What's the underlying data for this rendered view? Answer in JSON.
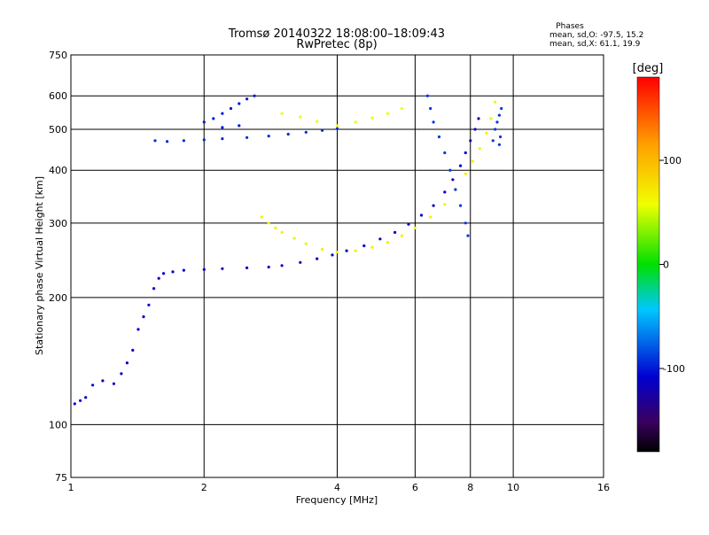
{
  "chart_data": {
    "type": "scatter",
    "title": "Tromsø 20140322 18:08:00–18:09:43",
    "subtitle": "RwPretec (8p)",
    "stats": {
      "heading": "Phases",
      "line1": "mean, sd,O: -97.5, 15.2",
      "line2": "mean, sd,X:  61.1, 19.9"
    },
    "xlabel": "Frequency [MHz]",
    "ylabel": "Stationary phase Virtual Height [km]",
    "x_scale": "log",
    "y_scale": "log",
    "xlim": [
      1,
      16
    ],
    "ylim": [
      75,
      750
    ],
    "xticks": [
      1,
      2,
      4,
      6,
      8,
      10,
      16
    ],
    "xtick_labels": [
      "1",
      "2",
      "4",
      "6",
      "8",
      "10",
      "16"
    ],
    "yticks": [
      75,
      100,
      200,
      300,
      400,
      500,
      600,
      750
    ],
    "ytick_labels": [
      "75",
      "100",
      "200",
      "300",
      "400",
      "500",
      "600",
      "750"
    ],
    "grid": true,
    "colorbar": {
      "label": "[deg]",
      "range": [
        -180,
        180
      ],
      "ticks": [
        100,
        0,
        -100
      ],
      "tick_labels": [
        "100",
        "0",
        "-100"
      ]
    },
    "series": [
      {
        "trace": "E / low-F lower trace",
        "phase_deg": -110,
        "points": [
          [
            1.02,
            112
          ],
          [
            1.05,
            114
          ],
          [
            1.08,
            116
          ],
          [
            1.12,
            124
          ],
          [
            1.18,
            127
          ],
          [
            1.25,
            125
          ],
          [
            1.3,
            132
          ],
          [
            1.34,
            140
          ],
          [
            1.38,
            150
          ],
          [
            1.42,
            168
          ],
          [
            1.46,
            180
          ],
          [
            1.5,
            192
          ],
          [
            1.54,
            210
          ],
          [
            1.58,
            222
          ],
          [
            1.62,
            228
          ],
          [
            1.7,
            230
          ],
          [
            1.8,
            232
          ],
          [
            2.0,
            233
          ],
          [
            2.2,
            234
          ],
          [
            2.5,
            235
          ],
          [
            2.8,
            236
          ],
          [
            3.0,
            238
          ],
          [
            3.3,
            242
          ],
          [
            3.6,
            247
          ],
          [
            3.9,
            252
          ],
          [
            4.2,
            258
          ],
          [
            4.6,
            265
          ],
          [
            5.0,
            275
          ],
          [
            5.4,
            285
          ],
          [
            5.8,
            298
          ],
          [
            6.2,
            313
          ],
          [
            6.6,
            330
          ],
          [
            7.0,
            355
          ],
          [
            7.3,
            380
          ],
          [
            7.6,
            410
          ],
          [
            7.8,
            440
          ],
          [
            8.0,
            470
          ],
          [
            8.2,
            500
          ],
          [
            8.35,
            530
          ]
        ]
      },
      {
        "trace": "upper F2 trace",
        "phase_deg": -95,
        "points": [
          [
            1.55,
            470
          ],
          [
            1.65,
            468
          ],
          [
            1.8,
            470
          ],
          [
            2.0,
            472
          ],
          [
            2.2,
            475
          ],
          [
            2.5,
            478
          ],
          [
            2.8,
            482
          ],
          [
            3.1,
            487
          ],
          [
            3.4,
            492
          ],
          [
            3.7,
            497
          ],
          [
            4.0,
            502
          ]
        ]
      },
      {
        "trace": "X-mode upper trace",
        "phase_deg": 60,
        "points": [
          [
            3.0,
            545
          ],
          [
            3.3,
            535
          ],
          [
            3.6,
            522
          ],
          [
            4.0,
            510
          ],
          [
            4.4,
            520
          ],
          [
            4.8,
            532
          ],
          [
            5.2,
            545
          ],
          [
            5.6,
            560
          ]
        ]
      },
      {
        "trace": "X-mode lower trace",
        "phase_deg": 65,
        "points": [
          [
            2.7,
            310
          ],
          [
            2.8,
            300
          ],
          [
            2.9,
            292
          ],
          [
            3.0,
            285
          ],
          [
            3.2,
            276
          ],
          [
            3.4,
            268
          ],
          [
            3.7,
            260
          ],
          [
            4.0,
            256
          ],
          [
            4.4,
            258
          ],
          [
            4.8,
            263
          ],
          [
            5.2,
            270
          ],
          [
            5.6,
            280
          ],
          [
            6.0,
            292
          ],
          [
            6.5,
            310
          ],
          [
            7.0,
            332
          ],
          [
            7.4,
            360
          ],
          [
            7.8,
            392
          ],
          [
            8.1,
            420
          ],
          [
            8.4,
            450
          ],
          [
            8.7,
            490
          ],
          [
            8.9,
            530
          ],
          [
            9.1,
            580
          ]
        ]
      },
      {
        "trace": "upper-left cluster",
        "phase_deg": -100,
        "points": [
          [
            2.0,
            520
          ],
          [
            2.1,
            530
          ],
          [
            2.2,
            545
          ],
          [
            2.3,
            560
          ],
          [
            2.4,
            575
          ],
          [
            2.5,
            590
          ],
          [
            2.6,
            600
          ],
          [
            2.2,
            505
          ],
          [
            2.4,
            510
          ]
        ]
      },
      {
        "trace": "high-frequency band",
        "phase_deg": -90,
        "points": [
          [
            6.4,
            600
          ],
          [
            6.5,
            560
          ],
          [
            6.6,
            520
          ],
          [
            6.8,
            480
          ],
          [
            7.0,
            440
          ],
          [
            7.2,
            400
          ],
          [
            7.4,
            360
          ],
          [
            7.6,
            330
          ],
          [
            7.8,
            300
          ],
          [
            7.9,
            280
          ],
          [
            9.0,
            470
          ],
          [
            9.1,
            500
          ],
          [
            9.2,
            520
          ],
          [
            9.3,
            540
          ],
          [
            9.4,
            560
          ],
          [
            9.35,
            480
          ],
          [
            9.3,
            460
          ]
        ]
      }
    ]
  }
}
